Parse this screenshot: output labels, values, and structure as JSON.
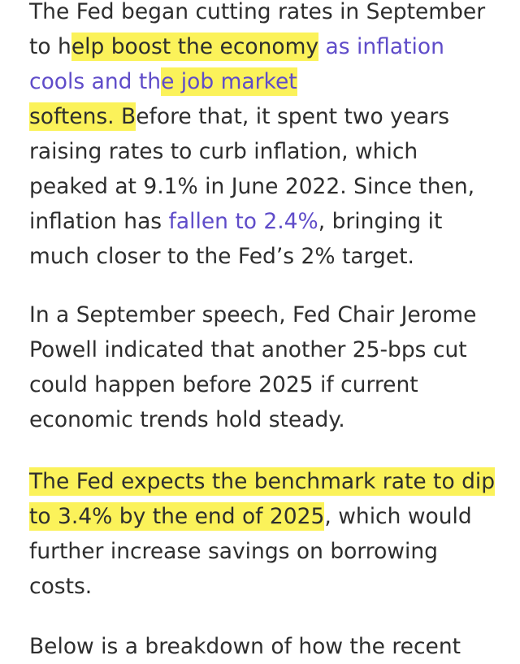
{
  "article": {
    "p1": {
      "t1": "The Fed began cutting rates in September to h",
      "hl1": "elp boost the economy",
      "link1a": " as inflation cools and th",
      "link1b": "e job market",
      "t2": "softens. B",
      "t3": "efore that, it spent two years raising rates to curb inflation, which peaked at 9.1% in June 2022. Since then, inflation has ",
      "link2": "fallen to 2.4%",
      "t4": ", bringing it much closer to the Fed’s 2% target."
    },
    "p2": {
      "text": "In a September speech, Fed Chair Jerome Powell indicated that another 25-bps cut could happen before 2025 if current economic trends hold steady."
    },
    "p3": {
      "hl": "The Fed expects the benchmark rate to dip to 3.4% by the end of 2025",
      "text": ", which would further increase savings on borrowing costs."
    },
    "p4": {
      "text": "Below is a breakdown of how the recent"
    }
  },
  "colors": {
    "highlight": "#fbf25a",
    "link": "#5f4cc9",
    "text": "#2e2e2e"
  }
}
